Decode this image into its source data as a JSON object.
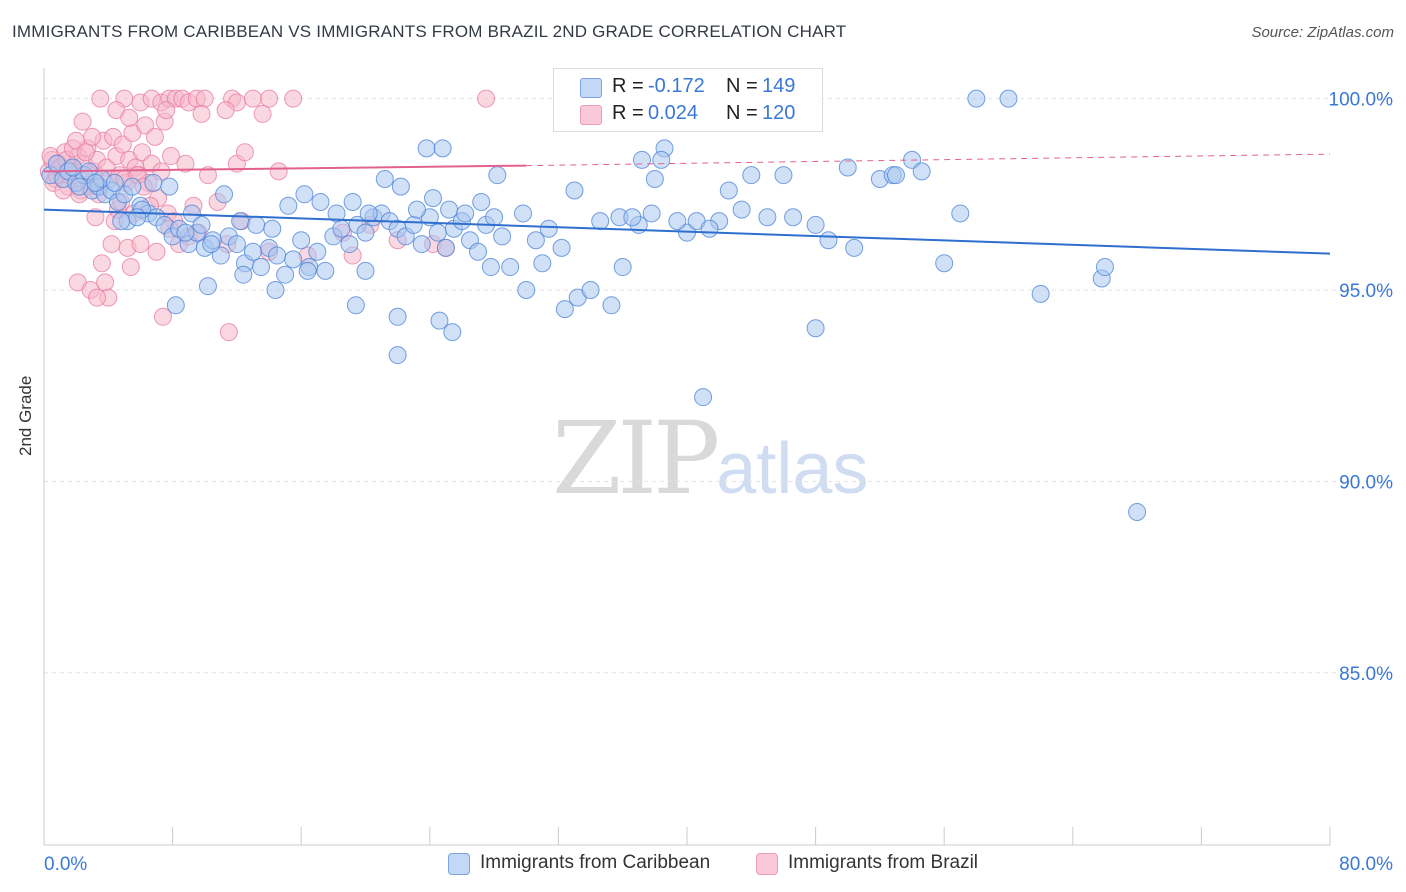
{
  "title": "IMMIGRANTS FROM CARIBBEAN VS IMMIGRANTS FROM BRAZIL 2ND GRADE CORRELATION CHART",
  "source": "Source: ZipAtlas.com",
  "watermark": {
    "zip": "ZIP",
    "atlas": "atlas"
  },
  "legend_top": [
    {
      "r_label": "R =",
      "r_value": "-0.172",
      "n_label": "N =",
      "n_value": "149"
    },
    {
      "r_label": "R =",
      "r_value": "0.024",
      "n_label": "N =",
      "n_value": "120"
    }
  ],
  "colors": {
    "caribbean_fill": "#a9c6f0",
    "caribbean_stroke": "#4a82d6",
    "caribbean_line": "#2f6fcf",
    "brazil_fill": "#f5b8cb",
    "brazil_stroke": "#e87aa0",
    "brazil_line": "#e2628f",
    "axis_text": "#3a78d8",
    "grid": "#e3e3e3"
  },
  "chart_data": {
    "type": "scatter",
    "title": "IMMIGRANTS FROM CARIBBEAN VS IMMIGRANTS FROM BRAZIL 2ND GRADE CORRELATION CHART",
    "xlabel": "",
    "ylabel": "2nd Grade",
    "xlim": [
      0,
      80
    ],
    "ylim": [
      80.5,
      100.8
    ],
    "x_tick_labels": [
      "0.0%",
      "80.0%"
    ],
    "y_ticks": [
      100,
      95,
      90,
      85
    ],
    "y_tick_labels": [
      "100.0%",
      "95.0%",
      "90.0%",
      "85.0%"
    ],
    "grid": true,
    "legend": "bottom-center",
    "series": [
      {
        "name": "Immigrants from Caribbean",
        "r": -0.172,
        "n": 149,
        "trend": {
          "x0": 0,
          "y0": 97.1,
          "x1": 80,
          "y1": 95.95
        },
        "points": [
          [
            0.4,
            98.0
          ],
          [
            0.8,
            98.3
          ],
          [
            1.2,
            97.9
          ],
          [
            1.5,
            98.1
          ],
          [
            2.0,
            97.8
          ],
          [
            2.5,
            98.0
          ],
          [
            3.0,
            97.6
          ],
          [
            3.4,
            97.7
          ],
          [
            3.8,
            97.5
          ],
          [
            4.2,
            97.6
          ],
          [
            4.6,
            97.3
          ],
          [
            5.0,
            97.5
          ],
          [
            5.5,
            97.7
          ],
          [
            6.0,
            97.2
          ],
          [
            6.5,
            97.0
          ],
          [
            1.8,
            98.2
          ],
          [
            2.2,
            97.7
          ],
          [
            2.8,
            98.1
          ],
          [
            3.6,
            97.9
          ],
          [
            4.4,
            97.8
          ],
          [
            5.2,
            96.8
          ],
          [
            6.1,
            97.1
          ],
          [
            7.0,
            96.9
          ],
          [
            7.5,
            96.7
          ],
          [
            8.0,
            96.4
          ],
          [
            8.4,
            96.6
          ],
          [
            9.0,
            96.2
          ],
          [
            9.5,
            96.5
          ],
          [
            10.0,
            96.1
          ],
          [
            10.5,
            96.3
          ],
          [
            11.0,
            95.9
          ],
          [
            11.5,
            96.4
          ],
          [
            12.0,
            96.2
          ],
          [
            12.5,
            95.7
          ],
          [
            13.0,
            96.0
          ],
          [
            13.5,
            95.6
          ],
          [
            14.0,
            96.1
          ],
          [
            14.5,
            95.9
          ],
          [
            15.0,
            95.4
          ],
          [
            15.5,
            95.8
          ],
          [
            16.0,
            96.3
          ],
          [
            16.5,
            95.6
          ],
          [
            17.0,
            96.0
          ],
          [
            17.5,
            95.5
          ],
          [
            18.0,
            96.4
          ],
          [
            18.5,
            96.6
          ],
          [
            19.0,
            96.2
          ],
          [
            19.5,
            96.7
          ],
          [
            20.0,
            96.5
          ],
          [
            20.5,
            96.9
          ],
          [
            21.0,
            97.0
          ],
          [
            21.5,
            96.8
          ],
          [
            22.0,
            96.6
          ],
          [
            22.5,
            96.4
          ],
          [
            23.0,
            96.7
          ],
          [
            23.5,
            96.2
          ],
          [
            24.0,
            96.9
          ],
          [
            24.5,
            96.5
          ],
          [
            25.0,
            96.1
          ],
          [
            25.5,
            96.6
          ],
          [
            26.0,
            96.8
          ],
          [
            26.5,
            96.3
          ],
          [
            27.0,
            96.0
          ],
          [
            27.5,
            96.7
          ],
          [
            28.0,
            96.9
          ],
          [
            28.5,
            96.4
          ],
          [
            9.2,
            97.0
          ],
          [
            9.8,
            96.7
          ],
          [
            10.4,
            96.2
          ],
          [
            11.2,
            97.5
          ],
          [
            12.2,
            96.8
          ],
          [
            13.2,
            96.7
          ],
          [
            14.2,
            96.6
          ],
          [
            15.2,
            97.2
          ],
          [
            16.2,
            97.5
          ],
          [
            17.2,
            97.3
          ],
          [
            18.2,
            97.0
          ],
          [
            19.2,
            97.3
          ],
          [
            20.2,
            97.0
          ],
          [
            21.2,
            97.9
          ],
          [
            22.2,
            97.7
          ],
          [
            23.2,
            97.1
          ],
          [
            24.2,
            97.4
          ],
          [
            25.2,
            97.1
          ],
          [
            26.2,
            97.0
          ],
          [
            27.2,
            97.3
          ],
          [
            28.2,
            98.0
          ],
          [
            6.8,
            97.8
          ],
          [
            7.8,
            97.7
          ],
          [
            8.8,
            96.5
          ],
          [
            4.8,
            96.8
          ],
          [
            3.2,
            97.8
          ],
          [
            5.8,
            96.9
          ],
          [
            8.2,
            94.6
          ],
          [
            10.2,
            95.1
          ],
          [
            12.4,
            95.4
          ],
          [
            14.4,
            95.0
          ],
          [
            16.4,
            95.5
          ],
          [
            19.4,
            94.6
          ],
          [
            20.0,
            95.5
          ],
          [
            22.0,
            94.3
          ],
          [
            24.6,
            94.2
          ],
          [
            25.4,
            93.9
          ],
          [
            27.8,
            95.6
          ],
          [
            29.0,
            95.6
          ],
          [
            30.0,
            95.0
          ],
          [
            31.0,
            95.7
          ],
          [
            32.4,
            94.5
          ],
          [
            33.2,
            94.8
          ],
          [
            34.0,
            95.0
          ],
          [
            35.3,
            94.6
          ],
          [
            36.0,
            95.6
          ],
          [
            37.0,
            96.7
          ],
          [
            38.0,
            97.9
          ],
          [
            40.0,
            96.5
          ],
          [
            42.0,
            96.8
          ],
          [
            44.0,
            98.0
          ],
          [
            46.0,
            98.0
          ],
          [
            48.0,
            96.7
          ],
          [
            50.0,
            98.2
          ],
          [
            52.0,
            97.9
          ],
          [
            54.0,
            98.4
          ],
          [
            56.0,
            95.7
          ],
          [
            57.0,
            97.0
          ],
          [
            29.8,
            97.0
          ],
          [
            30.6,
            96.3
          ],
          [
            31.4,
            96.6
          ],
          [
            32.2,
            96.1
          ],
          [
            33.0,
            97.6
          ],
          [
            34.6,
            96.8
          ],
          [
            35.8,
            96.9
          ],
          [
            36.6,
            96.9
          ],
          [
            37.8,
            97.0
          ],
          [
            38.6,
            98.7
          ],
          [
            39.4,
            96.8
          ],
          [
            40.6,
            96.8
          ],
          [
            41.4,
            96.6
          ],
          [
            42.6,
            97.6
          ],
          [
            43.4,
            97.1
          ],
          [
            45.0,
            96.9
          ],
          [
            46.6,
            96.9
          ],
          [
            48.8,
            96.3
          ],
          [
            50.4,
            96.1
          ],
          [
            52.8,
            98.0
          ],
          [
            54.6,
            98.1
          ],
          [
            58.0,
            100.0
          ],
          [
            60.0,
            100.0
          ],
          [
            53.0,
            98.0
          ],
          [
            37.2,
            98.4
          ],
          [
            62.0,
            94.9
          ],
          [
            65.8,
            95.3
          ],
          [
            66.0,
            95.6
          ],
          [
            68.0,
            89.2
          ],
          [
            41.0,
            92.2
          ],
          [
            48.0,
            94.0
          ],
          [
            22.0,
            93.3
          ],
          [
            23.8,
            98.7
          ],
          [
            24.8,
            98.7
          ],
          [
            38.4,
            98.4
          ]
        ]
      },
      {
        "name": "Immigrants from Brazil",
        "r": 0.024,
        "n": 120,
        "trend": {
          "x0": 0,
          "y0": 98.1,
          "x1": 30,
          "y1": 98.25
        },
        "trend_dashed": {
          "x0": 30,
          "y0": 98.25,
          "x1": 80,
          "y1": 98.55
        },
        "points": [
          [
            0.3,
            98.1
          ],
          [
            0.5,
            98.4
          ],
          [
            0.7,
            97.9
          ],
          [
            0.9,
            98.3
          ],
          [
            1.1,
            98.0
          ],
          [
            1.3,
            98.6
          ],
          [
            1.5,
            97.7
          ],
          [
            1.7,
            98.2
          ],
          [
            1.9,
            98.0
          ],
          [
            2.1,
            98.5
          ],
          [
            2.3,
            97.6
          ],
          [
            2.5,
            98.3
          ],
          [
            2.7,
            98.7
          ],
          [
            2.9,
            97.8
          ],
          [
            3.1,
            98.1
          ],
          [
            3.3,
            98.4
          ],
          [
            3.5,
            97.7
          ],
          [
            3.7,
            98.9
          ],
          [
            3.9,
            98.2
          ],
          [
            4.1,
            97.9
          ],
          [
            4.3,
            99.0
          ],
          [
            4.5,
            98.5
          ],
          [
            4.7,
            98.0
          ],
          [
            4.9,
            98.8
          ],
          [
            5.1,
            97.8
          ],
          [
            5.3,
            98.4
          ],
          [
            5.5,
            99.1
          ],
          [
            5.7,
            98.2
          ],
          [
            5.9,
            98.0
          ],
          [
            6.1,
            98.6
          ],
          [
            6.3,
            99.3
          ],
          [
            6.5,
            97.8
          ],
          [
            6.7,
            98.3
          ],
          [
            6.9,
            99.0
          ],
          [
            7.1,
            97.4
          ],
          [
            7.3,
            98.1
          ],
          [
            7.5,
            99.4
          ],
          [
            7.7,
            97.0
          ],
          [
            7.9,
            98.5
          ],
          [
            8.1,
            96.8
          ],
          [
            0.4,
            98.5
          ],
          [
            0.6,
            97.8
          ],
          [
            0.8,
            98.0
          ],
          [
            1.0,
            98.2
          ],
          [
            1.2,
            97.6
          ],
          [
            1.4,
            98.4
          ],
          [
            1.6,
            98.1
          ],
          [
            1.8,
            98.7
          ],
          [
            2.0,
            98.9
          ],
          [
            2.2,
            97.5
          ],
          [
            2.4,
            99.4
          ],
          [
            2.6,
            98.6
          ],
          [
            2.8,
            97.7
          ],
          [
            3.0,
            99.0
          ],
          [
            3.2,
            96.9
          ],
          [
            3.4,
            97.5
          ],
          [
            3.6,
            95.7
          ],
          [
            3.8,
            95.2
          ],
          [
            4.0,
            94.8
          ],
          [
            4.2,
            96.2
          ],
          [
            4.4,
            96.8
          ],
          [
            4.6,
            97.1
          ],
          [
            4.8,
            97.3
          ],
          [
            5.0,
            97.9
          ],
          [
            5.2,
            96.1
          ],
          [
            5.4,
            95.6
          ],
          [
            5.6,
            97.0
          ],
          [
            5.8,
            98.0
          ],
          [
            6.0,
            96.2
          ],
          [
            6.2,
            97.7
          ],
          [
            6.6,
            97.2
          ],
          [
            7.0,
            96.0
          ],
          [
            7.4,
            94.3
          ],
          [
            7.8,
            96.6
          ],
          [
            8.4,
            96.2
          ],
          [
            9.0,
            96.4
          ],
          [
            9.6,
            96.5
          ],
          [
            10.2,
            98.0
          ],
          [
            10.8,
            97.3
          ],
          [
            11.4,
            96.2
          ],
          [
            12.0,
            98.3
          ],
          [
            2.1,
            95.2
          ],
          [
            2.9,
            95.0
          ],
          [
            3.3,
            94.8
          ],
          [
            11.5,
            93.9
          ],
          [
            12.3,
            96.8
          ],
          [
            14.0,
            96.0
          ],
          [
            14.6,
            98.1
          ],
          [
            16.4,
            95.9
          ],
          [
            18.6,
            96.5
          ],
          [
            19.2,
            95.9
          ],
          [
            20.3,
            96.7
          ],
          [
            22.0,
            96.3
          ],
          [
            24.2,
            96.2
          ],
          [
            25.0,
            96.1
          ],
          [
            3.5,
            100.0
          ],
          [
            5.0,
            100.0
          ],
          [
            6.0,
            99.9
          ],
          [
            6.7,
            100.0
          ],
          [
            7.3,
            99.9
          ],
          [
            7.8,
            100.0
          ],
          [
            8.2,
            100.0
          ],
          [
            8.6,
            100.0
          ],
          [
            9.0,
            99.9
          ],
          [
            9.5,
            100.0
          ],
          [
            10.0,
            100.0
          ],
          [
            11.7,
            100.0
          ],
          [
            12.0,
            99.9
          ],
          [
            13.0,
            100.0
          ],
          [
            14.0,
            100.0
          ],
          [
            15.5,
            100.0
          ],
          [
            27.5,
            100.0
          ],
          [
            4.5,
            99.7
          ],
          [
            5.3,
            99.5
          ],
          [
            7.6,
            99.7
          ],
          [
            9.8,
            99.6
          ],
          [
            11.3,
            99.7
          ],
          [
            12.5,
            98.6
          ],
          [
            13.6,
            99.6
          ],
          [
            8.8,
            98.3
          ],
          [
            9.3,
            97.2
          ]
        ]
      }
    ]
  }
}
